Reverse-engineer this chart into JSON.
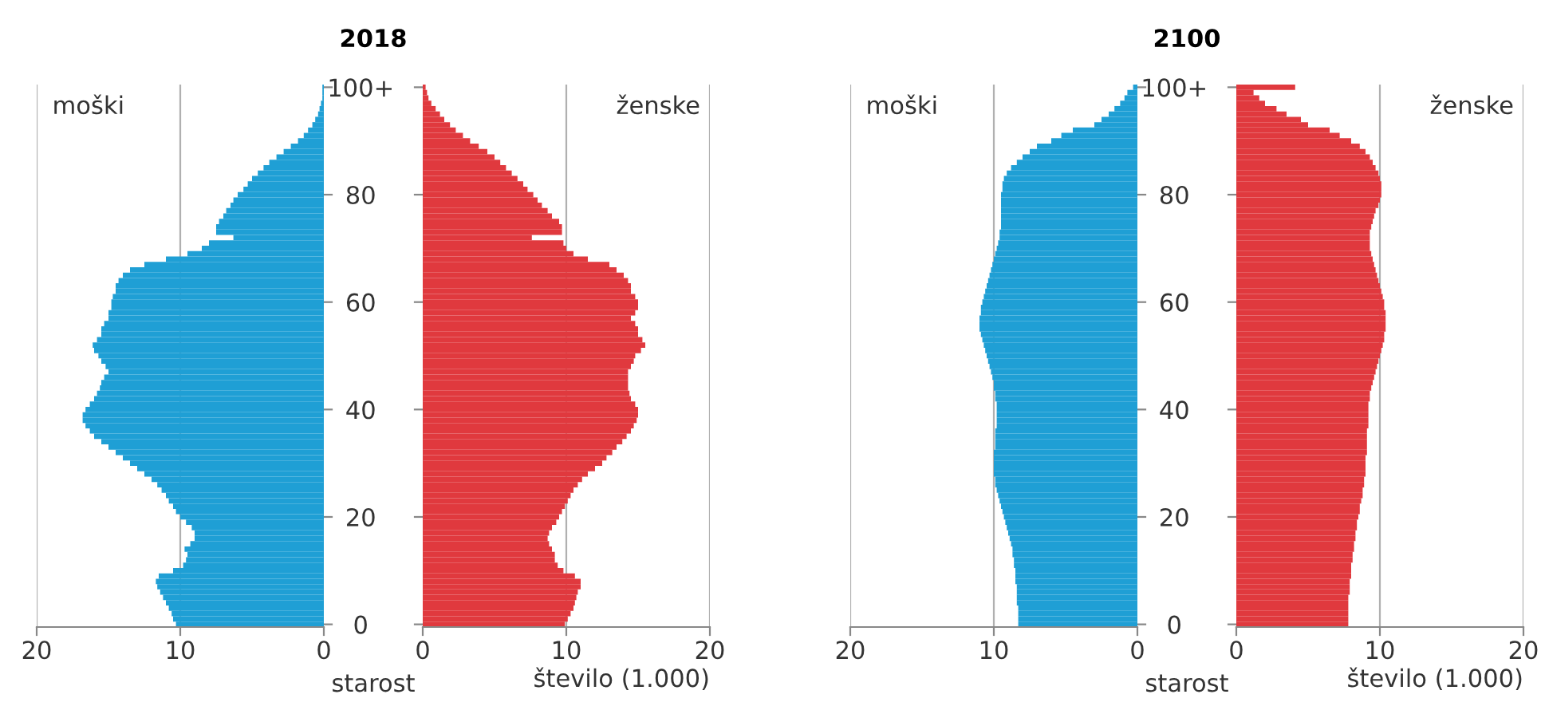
{
  "chart_data": [
    {
      "type": "bar",
      "orientation": "horizontal",
      "title": "2018",
      "annotations": [
        "moški"
      ],
      "color": "#1f9fd5",
      "xlim": [
        20,
        0
      ],
      "xticks": [
        20,
        10,
        0
      ],
      "grid": "x",
      "categories": [
        null,
        null,
        null,
        null,
        null,
        null,
        null,
        null,
        null,
        null,
        null,
        null,
        null,
        null,
        null,
        null,
        null,
        null,
        null,
        null,
        null,
        null,
        null,
        null,
        null,
        null,
        null,
        null,
        null,
        null,
        null,
        null,
        null,
        null,
        null,
        null,
        null,
        null,
        null,
        null,
        null,
        null,
        null,
        null,
        null,
        null,
        null,
        null,
        null,
        null,
        null,
        null,
        null,
        null,
        null,
        null,
        null,
        null,
        null,
        null,
        null,
        null,
        null,
        null,
        null,
        null,
        null,
        null,
        null,
        null,
        null,
        null,
        null,
        null,
        null,
        null,
        null,
        null,
        null,
        null,
        null,
        null,
        null,
        null,
        null,
        null,
        null,
        null,
        null,
        null,
        null,
        null,
        null,
        null,
        null,
        null,
        null,
        null,
        null,
        null,
        null
      ],
      "values": [
        0.1,
        0.1,
        0.1,
        0.2,
        0.3,
        0.4,
        0.6,
        0.8,
        1.1,
        1.4,
        1.8,
        2.3,
        2.8,
        3.3,
        3.8,
        4.2,
        4.6,
        5.0,
        5.3,
        5.6,
        6.0,
        6.3,
        6.5,
        6.8,
        7.0,
        7.3,
        7.5,
        7.5,
        6.3,
        8.0,
        8.5,
        9.5,
        11.0,
        12.5,
        13.5,
        14.0,
        14.3,
        14.5,
        14.5,
        14.7,
        14.8,
        14.8,
        15.0,
        15.0,
        15.3,
        15.5,
        15.5,
        15.8,
        16.1,
        16.0,
        15.7,
        15.5,
        15.2,
        15.0,
        15.3,
        15.5,
        15.6,
        15.8,
        16.0,
        16.3,
        16.6,
        16.8,
        16.8,
        16.6,
        16.3,
        16.0,
        15.5,
        15.0,
        14.5,
        14.0,
        13.5,
        13.0,
        12.5,
        12.0,
        11.6,
        11.3,
        11.0,
        10.8,
        10.5,
        10.3,
        10.0,
        9.6,
        9.2,
        9.0,
        9.0,
        9.3,
        9.7,
        9.5,
        9.6,
        9.8,
        10.5,
        11.5,
        11.7,
        11.6,
        11.4,
        11.2,
        11.0,
        10.8,
        10.6,
        10.5,
        10.3
      ]
    },
    {
      "type": "bar",
      "orientation": "horizontal",
      "annotations": [
        "ženske"
      ],
      "xlabel": "število (1.000)",
      "ylabel": "starost",
      "color": "#e0393e",
      "xlim": [
        0,
        20
      ],
      "xticks": [
        0,
        10,
        20
      ],
      "grid": "x",
      "categories": [
        "100+",
        null,
        null,
        null,
        null,
        null,
        null,
        null,
        null,
        null,
        null,
        null,
        null,
        null,
        null,
        null,
        null,
        null,
        null,
        null,
        "80",
        null,
        null,
        null,
        null,
        null,
        null,
        null,
        null,
        null,
        null,
        null,
        null,
        null,
        null,
        null,
        null,
        null,
        null,
        null,
        "60",
        null,
        null,
        null,
        null,
        null,
        null,
        null,
        null,
        null,
        null,
        null,
        null,
        null,
        null,
        null,
        null,
        null,
        null,
        null,
        "40",
        null,
        null,
        null,
        null,
        null,
        null,
        null,
        null,
        null,
        null,
        null,
        null,
        null,
        null,
        null,
        null,
        null,
        null,
        null,
        "20",
        null,
        null,
        null,
        null,
        null,
        null,
        null,
        null,
        null,
        null,
        null,
        null,
        null,
        null,
        null,
        null,
        null,
        null,
        null,
        "0"
      ],
      "values": [
        0.2,
        0.3,
        0.4,
        0.6,
        0.9,
        1.2,
        1.5,
        1.9,
        2.3,
        2.8,
        3.3,
        3.9,
        4.5,
        5.0,
        5.4,
        5.8,
        6.2,
        6.6,
        7.0,
        7.3,
        7.7,
        8.0,
        8.3,
        8.7,
        9.0,
        9.5,
        9.7,
        9.7,
        7.6,
        9.8,
        10.0,
        10.5,
        11.5,
        13.0,
        13.5,
        14.0,
        14.3,
        14.5,
        14.5,
        14.8,
        15.0,
        15.0,
        14.8,
        14.5,
        14.8,
        15.0,
        15.0,
        15.3,
        15.5,
        15.2,
        14.8,
        14.7,
        14.5,
        14.3,
        14.3,
        14.3,
        14.3,
        14.4,
        14.5,
        14.8,
        15.0,
        15.0,
        14.9,
        14.7,
        14.5,
        14.2,
        13.9,
        13.5,
        13.2,
        12.8,
        12.5,
        12.0,
        11.5,
        11.1,
        10.8,
        10.5,
        10.3,
        10.1,
        9.9,
        9.7,
        9.5,
        9.3,
        9.0,
        8.8,
        8.7,
        8.8,
        9.0,
        9.2,
        9.2,
        9.4,
        9.8,
        10.6,
        11.0,
        11.0,
        10.8,
        10.7,
        10.6,
        10.5,
        10.3,
        10.1,
        9.9
      ]
    },
    {
      "type": "bar",
      "orientation": "horizontal",
      "title": "2100",
      "annotations": [
        "moški"
      ],
      "color": "#1f9fd5",
      "xlim": [
        20,
        0
      ],
      "xticks": [
        20,
        10,
        0
      ],
      "grid": "x",
      "categories": [
        null,
        null,
        null,
        null,
        null,
        null,
        null,
        null,
        null,
        null,
        null,
        null,
        null,
        null,
        null,
        null,
        null,
        null,
        null,
        null,
        null,
        null,
        null,
        null,
        null,
        null,
        null,
        null,
        null,
        null,
        null,
        null,
        null,
        null,
        null,
        null,
        null,
        null,
        null,
        null,
        null,
        null,
        null,
        null,
        null,
        null,
        null,
        null,
        null,
        null,
        null,
        null,
        null,
        null,
        null,
        null,
        null,
        null,
        null,
        null,
        null,
        null,
        null,
        null,
        null,
        null,
        null,
        null,
        null,
        null,
        null,
        null,
        null,
        null,
        null,
        null,
        null,
        null,
        null,
        null,
        null,
        null,
        null,
        null,
        null,
        null,
        null,
        null,
        null,
        null,
        null,
        null,
        null,
        null,
        null,
        null,
        null,
        null,
        null,
        null,
        null
      ],
      "values": [
        0.3,
        0.7,
        0.9,
        1.2,
        1.6,
        2.0,
        2.5,
        3.0,
        4.5,
        5.3,
        6.0,
        7.0,
        7.5,
        8.0,
        8.4,
        8.8,
        9.1,
        9.3,
        9.4,
        9.4,
        9.5,
        9.5,
        9.5,
        9.5,
        9.5,
        9.5,
        9.5,
        9.6,
        9.6,
        9.7,
        9.8,
        9.9,
        10.0,
        10.1,
        10.2,
        10.3,
        10.4,
        10.5,
        10.6,
        10.7,
        10.8,
        10.9,
        10.9,
        11.0,
        11.0,
        11.0,
        10.9,
        10.8,
        10.7,
        10.6,
        10.5,
        10.4,
        10.3,
        10.2,
        10.1,
        10.0,
        10.0,
        9.9,
        9.9,
        9.8,
        9.8,
        9.8,
        9.8,
        9.8,
        9.9,
        9.9,
        9.9,
        9.9,
        10.0,
        10.0,
        10.0,
        10.0,
        10.0,
        9.9,
        9.9,
        9.8,
        9.7,
        9.6,
        9.5,
        9.4,
        9.3,
        9.2,
        9.1,
        9.0,
        8.9,
        8.8,
        8.7,
        8.7,
        8.6,
        8.6,
        8.5,
        8.5,
        8.5,
        8.4,
        8.4,
        8.4,
        8.4,
        8.3,
        8.3,
        8.3,
        8.3
      ]
    },
    {
      "type": "bar",
      "orientation": "horizontal",
      "annotations": [
        "ženske"
      ],
      "xlabel": "število (1.000)",
      "ylabel": "starost",
      "color": "#e0393e",
      "xlim": [
        0,
        20
      ],
      "xticks": [
        0,
        10,
        20
      ],
      "grid": "x",
      "categories": [
        "100+",
        null,
        null,
        null,
        null,
        null,
        null,
        null,
        null,
        null,
        null,
        null,
        null,
        null,
        null,
        null,
        null,
        null,
        null,
        null,
        "80",
        null,
        null,
        null,
        null,
        null,
        null,
        null,
        null,
        null,
        null,
        null,
        null,
        null,
        null,
        null,
        null,
        null,
        null,
        null,
        "60",
        null,
        null,
        null,
        null,
        null,
        null,
        null,
        null,
        null,
        null,
        null,
        null,
        null,
        null,
        null,
        null,
        null,
        null,
        null,
        "40",
        null,
        null,
        null,
        null,
        null,
        null,
        null,
        null,
        null,
        null,
        null,
        null,
        null,
        null,
        null,
        null,
        null,
        null,
        null,
        "20",
        null,
        null,
        null,
        null,
        null,
        null,
        null,
        null,
        null,
        null,
        null,
        null,
        null,
        null,
        null,
        null,
        null,
        null,
        null,
        "0"
      ],
      "values": [
        4.1,
        1.2,
        1.6,
        2.0,
        2.8,
        3.5,
        4.5,
        5.0,
        6.5,
        7.2,
        8.0,
        8.6,
        9.0,
        9.3,
        9.5,
        9.7,
        9.9,
        10.0,
        10.1,
        10.1,
        10.1,
        10.0,
        9.9,
        9.7,
        9.6,
        9.5,
        9.4,
        9.3,
        9.3,
        9.3,
        9.3,
        9.4,
        9.5,
        9.6,
        9.7,
        9.8,
        9.9,
        10.0,
        10.1,
        10.2,
        10.3,
        10.3,
        10.4,
        10.4,
        10.4,
        10.4,
        10.3,
        10.3,
        10.2,
        10.1,
        10.0,
        9.9,
        9.8,
        9.7,
        9.6,
        9.5,
        9.4,
        9.3,
        9.3,
        9.2,
        9.2,
        9.2,
        9.2,
        9.2,
        9.1,
        9.1,
        9.1,
        9.1,
        9.1,
        9.0,
        9.0,
        9.0,
        9.0,
        8.9,
        8.9,
        8.8,
        8.8,
        8.7,
        8.6,
        8.6,
        8.5,
        8.4,
        8.4,
        8.3,
        8.3,
        8.2,
        8.2,
        8.1,
        8.1,
        8.0,
        8.0,
        8.0,
        7.9,
        7.9,
        7.9,
        7.8,
        7.8,
        7.8,
        7.8,
        7.8,
        7.8
      ]
    }
  ]
}
